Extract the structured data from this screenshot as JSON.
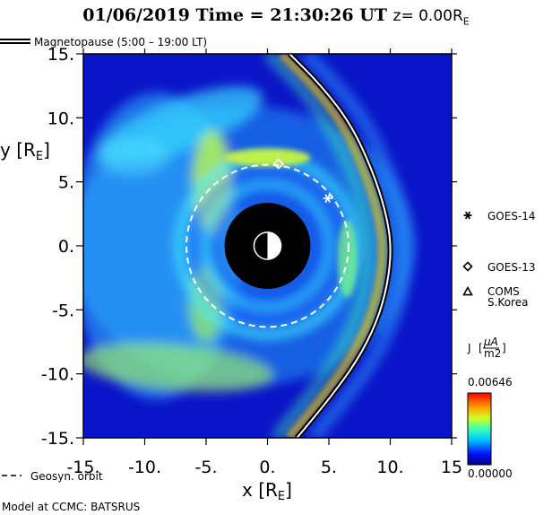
{
  "header": {
    "date": "01/06/2019",
    "time_label": "Time",
    "time_value": "21:30:26",
    "time_unit": "UT",
    "z_label": "z= 0.00R",
    "z_subscript": "E"
  },
  "chart_data": {
    "type": "heatmap",
    "quantity": "J",
    "xlabel": "x [R",
    "xlabel_sub": "E",
    "xlabel_end": "]",
    "ylabel": "y [R",
    "ylabel_sub": "E",
    "ylabel_end": "]",
    "xlim": [
      -15,
      15
    ],
    "ylim": [
      -15,
      15
    ],
    "x_ticks": [
      -15,
      -10,
      -5,
      0,
      5,
      10,
      15
    ],
    "x_tick_labels": [
      "-15.",
      "-10.",
      "-5.",
      "0.",
      "5.",
      "10.",
      "15"
    ],
    "y_ticks": [
      15,
      10,
      5,
      0,
      -5,
      -10,
      -15
    ],
    "y_tick_labels": [
      "15.",
      "10.",
      "5.",
      "0.",
      "-5.",
      "-10.",
      "-15."
    ],
    "colorbar": {
      "max_label": "0.00646",
      "min_label": "0.00000",
      "units_numerator": "μA",
      "units_denominator": "m2",
      "label": "J"
    },
    "legend_magnetopause": "Magnetopause (5:00 – 19:00 LT)",
    "legend_geosync": "Geosyn. orbit",
    "geosync_radius": 6.6,
    "earth_radius": 3.5,
    "satellites": [
      {
        "name": "GOES-14",
        "marker": "asterisk",
        "x": 4.9,
        "y": 3.7
      },
      {
        "name": "GOES-13",
        "marker": "diamond",
        "x": 0.9,
        "y": 6.4
      },
      {
        "name": "COMS S.Korea",
        "label_line1": "COMS",
        "label_line2": "S.Korea",
        "marker": "triangle"
      }
    ],
    "magnetopause_curve": [
      [
        1.8,
        15
      ],
      [
        4.4,
        12.5
      ],
      [
        6.8,
        9.5
      ],
      [
        8.5,
        6
      ],
      [
        9.6,
        2.8
      ],
      [
        10.1,
        0
      ],
      [
        9.8,
        -3
      ],
      [
        8.9,
        -6
      ],
      [
        7.3,
        -9
      ],
      [
        5.0,
        -12
      ],
      [
        2.4,
        -15
      ]
    ],
    "credit": "Model at CCMC: BATSRUS"
  },
  "colors": {
    "background": "#0a14c8",
    "magnetopause": "#000000",
    "geosync": "#ffffff"
  }
}
